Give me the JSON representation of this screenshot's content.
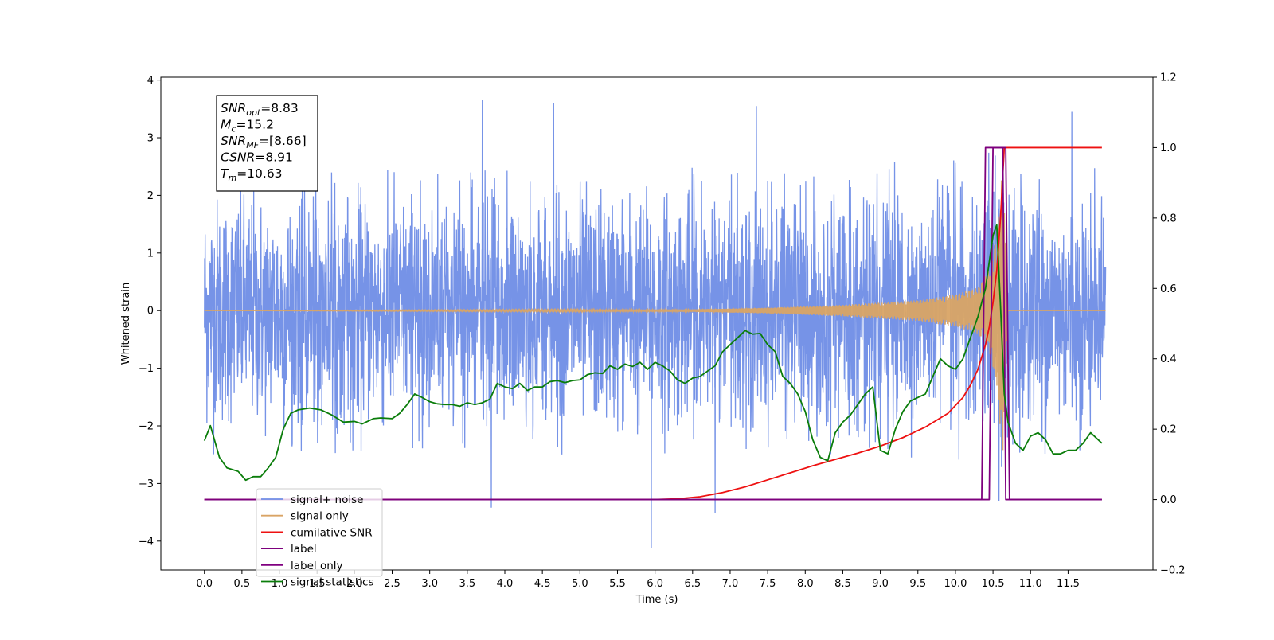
{
  "chart_data": {
    "type": "line",
    "xlabel": "Time (s)",
    "ylabel": "Whitened strain",
    "xlim": [
      -0.58,
      12.63
    ],
    "ylim_left": [
      -4.5,
      4.05
    ],
    "ylim_right": [
      -0.2,
      1.2
    ],
    "x_ticks": [
      0.0,
      0.5,
      1.0,
      1.5,
      2.0,
      2.5,
      3.0,
      3.5,
      4.0,
      4.5,
      5.0,
      5.5,
      6.0,
      6.5,
      7.0,
      7.5,
      8.0,
      8.5,
      9.0,
      9.5,
      10.0,
      10.5,
      11.0,
      11.5
    ],
    "x_tick_labels": [
      "0.0",
      "0.5",
      "1.0",
      "1.5",
      "2.0",
      "2.5",
      "3.0",
      "3.5",
      "4.0",
      "4.5",
      "5.0",
      "5.5",
      "6.0",
      "6.5",
      "7.0",
      "7.5",
      "8.0",
      "8.5",
      "9.0",
      "9.5",
      "10.0",
      "10.5",
      "11.0",
      "11.5"
    ],
    "y_ticks_left": [
      4,
      3,
      2,
      1,
      0,
      -1,
      -2,
      -3,
      -4
    ],
    "y_tick_labels_left": [
      "4",
      "3",
      "2",
      "1",
      "0",
      "−1",
      "−2",
      "−3",
      "−4"
    ],
    "y_ticks_right": [
      1.2,
      1.0,
      0.8,
      0.6,
      0.4,
      0.2,
      0.0,
      -0.2
    ],
    "y_tick_labels_right": [
      "1.2",
      "1.0",
      "0.8",
      "0.6",
      "0.4",
      "0.2",
      "0.0",
      "−0.2"
    ],
    "annotation": {
      "lines": [
        {
          "base": "SNR",
          "sub": "opt",
          "value": "=8.83"
        },
        {
          "base": "M",
          "sub": "c",
          "value": "=15.2"
        },
        {
          "base": "SNR",
          "sub": "MF",
          "value": "=[8.66]"
        },
        {
          "base": "CSNR",
          "sub": "",
          "value": "=8.91"
        },
        {
          "base": "T",
          "sub": "m",
          "value": "=10.63"
        }
      ]
    },
    "legend": {
      "placement": "lower-left",
      "entries": [
        "signal+ noise",
        "signal only",
        "cumilative SNR",
        "label",
        "label only",
        "signal statistics"
      ]
    },
    "series": [
      {
        "name": "signal+ noise",
        "axis": "left",
        "color": "#6f8de6",
        "kind": "noise",
        "x_range": [
          0.0,
          12.0
        ],
        "noise_sigma": 0.95,
        "noise_envelope_max": 2.5,
        "noise_envelope_min": -2.5,
        "notable_peaks": [
          {
            "x": 3.7,
            "y": 3.65
          },
          {
            "x": 4.65,
            "y": 3.6
          },
          {
            "x": 7.35,
            "y": 3.55
          },
          {
            "x": 11.55,
            "y": 3.45
          },
          {
            "x": 3.82,
            "y": -3.42
          },
          {
            "x": 5.95,
            "y": -4.12
          },
          {
            "x": 6.8,
            "y": -3.52
          },
          {
            "x": 10.58,
            "y": -3.3
          }
        ]
      },
      {
        "name": "signal only",
        "axis": "left",
        "color": "#d9a465",
        "kind": "chirp",
        "x_range": [
          0.0,
          12.0
        ],
        "merger_time": 10.63,
        "amplitude_points": [
          [
            0.0,
            0.0
          ],
          [
            6.5,
            0.02
          ],
          [
            7.5,
            0.05
          ],
          [
            8.5,
            0.1
          ],
          [
            9.0,
            0.14
          ],
          [
            9.5,
            0.18
          ],
          [
            10.0,
            0.28
          ],
          [
            10.3,
            0.4
          ],
          [
            10.45,
            0.7
          ],
          [
            10.55,
            1.3
          ],
          [
            10.6,
            2.1
          ],
          [
            10.63,
            2.5
          ],
          [
            10.7,
            0.0
          ]
        ]
      },
      {
        "name": "cumilative SNR",
        "axis": "right",
        "color": "#ee1111",
        "x": [
          0.0,
          6.0,
          6.3,
          6.6,
          6.9,
          7.2,
          7.5,
          7.8,
          8.1,
          8.4,
          8.7,
          9.0,
          9.3,
          9.6,
          9.9,
          10.1,
          10.2,
          10.3,
          10.4,
          10.45,
          10.5,
          10.55,
          10.6,
          10.63,
          10.65,
          11.0,
          11.5,
          11.95
        ],
        "y": [
          0.0,
          0.0,
          0.002,
          0.008,
          0.02,
          0.036,
          0.056,
          0.076,
          0.096,
          0.114,
          0.132,
          0.152,
          0.176,
          0.206,
          0.245,
          0.29,
          0.325,
          0.37,
          0.44,
          0.49,
          0.56,
          0.65,
          0.8,
          0.92,
          1.0,
          1.0,
          1.0,
          1.0
        ]
      },
      {
        "name": "label",
        "axis": "right",
        "color": "#7d007d",
        "x": [
          0.0,
          10.35,
          10.4,
          10.67,
          10.72,
          11.95
        ],
        "y": [
          0.0,
          0.0,
          1.0,
          1.0,
          0.0,
          0.0
        ]
      },
      {
        "name": "label only",
        "axis": "right",
        "color": "#800080",
        "x": [
          0.0,
          10.45,
          10.5,
          10.63,
          10.67,
          11.95
        ],
        "y": [
          0.0,
          0.0,
          1.0,
          1.0,
          0.0,
          0.0
        ]
      },
      {
        "name": "signal statistics",
        "axis": "right",
        "color": "#0a7d0a",
        "x": [
          0.0,
          0.08,
          0.2,
          0.3,
          0.45,
          0.55,
          0.65,
          0.75,
          0.85,
          0.95,
          1.05,
          1.15,
          1.25,
          1.4,
          1.55,
          1.7,
          1.85,
          2.0,
          2.1,
          2.25,
          2.35,
          2.5,
          2.6,
          2.7,
          2.8,
          2.9,
          3.0,
          3.1,
          3.2,
          3.3,
          3.4,
          3.5,
          3.6,
          3.7,
          3.8,
          3.9,
          4.0,
          4.1,
          4.2,
          4.3,
          4.4,
          4.5,
          4.6,
          4.7,
          4.8,
          4.9,
          5.0,
          5.1,
          5.2,
          5.3,
          5.4,
          5.5,
          5.6,
          5.7,
          5.8,
          5.9,
          6.0,
          6.1,
          6.2,
          6.3,
          6.4,
          6.5,
          6.6,
          6.7,
          6.8,
          6.9,
          7.0,
          7.1,
          7.2,
          7.3,
          7.4,
          7.5,
          7.6,
          7.7,
          7.8,
          7.9,
          8.0,
          8.1,
          8.2,
          8.3,
          8.4,
          8.5,
          8.6,
          8.7,
          8.8,
          8.9,
          9.0,
          9.1,
          9.2,
          9.3,
          9.4,
          9.5,
          9.6,
          9.7,
          9.8,
          9.9,
          10.0,
          10.1,
          10.2,
          10.3,
          10.4,
          10.5,
          10.55,
          10.6,
          10.65,
          10.7,
          10.8,
          10.9,
          11.0,
          11.1,
          11.2,
          11.3,
          11.4,
          11.5,
          11.6,
          11.7,
          11.8,
          11.95
        ],
        "y": [
          0.167,
          0.21,
          0.12,
          0.09,
          0.08,
          0.055,
          0.065,
          0.065,
          0.09,
          0.12,
          0.2,
          0.245,
          0.255,
          0.26,
          0.255,
          0.24,
          0.22,
          0.222,
          0.215,
          0.23,
          0.232,
          0.23,
          0.245,
          0.27,
          0.3,
          0.29,
          0.278,
          0.272,
          0.27,
          0.27,
          0.265,
          0.275,
          0.27,
          0.275,
          0.285,
          0.33,
          0.32,
          0.315,
          0.33,
          0.31,
          0.32,
          0.32,
          0.335,
          0.338,
          0.332,
          0.338,
          0.34,
          0.355,
          0.36,
          0.358,
          0.38,
          0.37,
          0.385,
          0.378,
          0.39,
          0.37,
          0.39,
          0.38,
          0.365,
          0.34,
          0.33,
          0.345,
          0.35,
          0.365,
          0.38,
          0.42,
          0.44,
          0.46,
          0.48,
          0.47,
          0.472,
          0.44,
          0.42,
          0.35,
          0.33,
          0.3,
          0.25,
          0.17,
          0.12,
          0.11,
          0.19,
          0.22,
          0.24,
          0.27,
          0.3,
          0.32,
          0.14,
          0.13,
          0.2,
          0.25,
          0.28,
          0.29,
          0.3,
          0.35,
          0.4,
          0.38,
          0.37,
          0.4,
          0.46,
          0.52,
          0.6,
          0.75,
          0.78,
          0.55,
          0.3,
          0.22,
          0.16,
          0.14,
          0.18,
          0.19,
          0.17,
          0.13,
          0.13,
          0.14,
          0.14,
          0.16,
          0.19,
          0.16
        ]
      }
    ]
  }
}
